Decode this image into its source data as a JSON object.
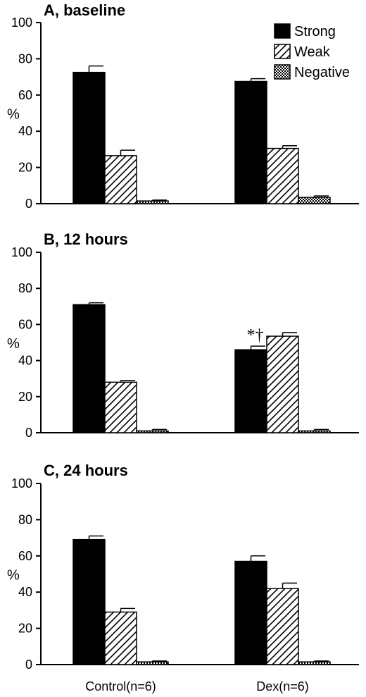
{
  "chart_data": [
    {
      "type": "bar",
      "title": "A, baseline",
      "ylabel": "%",
      "ylim": [
        0,
        100
      ],
      "yticks": [
        "0",
        "20",
        "40",
        "60",
        "80",
        "100"
      ],
      "categories": [
        "Control(n=6)",
        "Dex(n=6)"
      ],
      "series": [
        {
          "name": "Strong",
          "values": [
            72.5,
            67.5
          ],
          "errors": [
            3.5,
            1.5
          ],
          "fill": "solid-black"
        },
        {
          "name": "Weak",
          "values": [
            26.5,
            30.5
          ],
          "errors": [
            3.0,
            1.5
          ],
          "fill": "diagonal-hatch"
        },
        {
          "name": "Negative",
          "values": [
            1.5,
            3.5
          ],
          "errors": [
            0.5,
            0.8
          ],
          "fill": "crosshatch"
        }
      ],
      "legend": "top-right",
      "annotations": []
    },
    {
      "type": "bar",
      "title": "B, 12 hours",
      "ylabel": "%",
      "ylim": [
        0,
        100
      ],
      "yticks": [
        "0",
        "20",
        "40",
        "60",
        "80",
        "100"
      ],
      "categories": [
        "Control(n=6)",
        "Dex(n=6)"
      ],
      "series": [
        {
          "name": "Strong",
          "values": [
            71.0,
            46.0
          ],
          "errors": [
            1.0,
            2.0
          ],
          "fill": "solid-black"
        },
        {
          "name": "Weak",
          "values": [
            28.0,
            53.5
          ],
          "errors": [
            1.0,
            2.0
          ],
          "fill": "diagonal-hatch"
        },
        {
          "name": "Negative",
          "values": [
            1.0,
            1.0
          ],
          "errors": [
            0.8,
            0.8
          ],
          "fill": "crosshatch"
        }
      ],
      "legend": "none",
      "annotations": [
        "*†"
      ]
    },
    {
      "type": "bar",
      "title": "C, 24 hours",
      "ylabel": "%",
      "ylim": [
        0,
        100
      ],
      "yticks": [
        "0",
        "20",
        "40",
        "60",
        "80",
        "100"
      ],
      "categories": [
        "Control(n=6)",
        "Dex(n=6)"
      ],
      "series": [
        {
          "name": "Strong",
          "values": [
            69.0,
            57.0
          ],
          "errors": [
            2.0,
            3.0
          ],
          "fill": "solid-black"
        },
        {
          "name": "Weak",
          "values": [
            29.0,
            42.0
          ],
          "errors": [
            2.0,
            3.0
          ],
          "fill": "diagonal-hatch"
        },
        {
          "name": "Negative",
          "values": [
            1.5,
            1.5
          ],
          "errors": [
            0.5,
            0.5
          ],
          "fill": "crosshatch"
        }
      ],
      "legend": "none",
      "annotations": []
    }
  ],
  "colors": {
    "ink": "#000000",
    "paper": "#ffffff"
  }
}
